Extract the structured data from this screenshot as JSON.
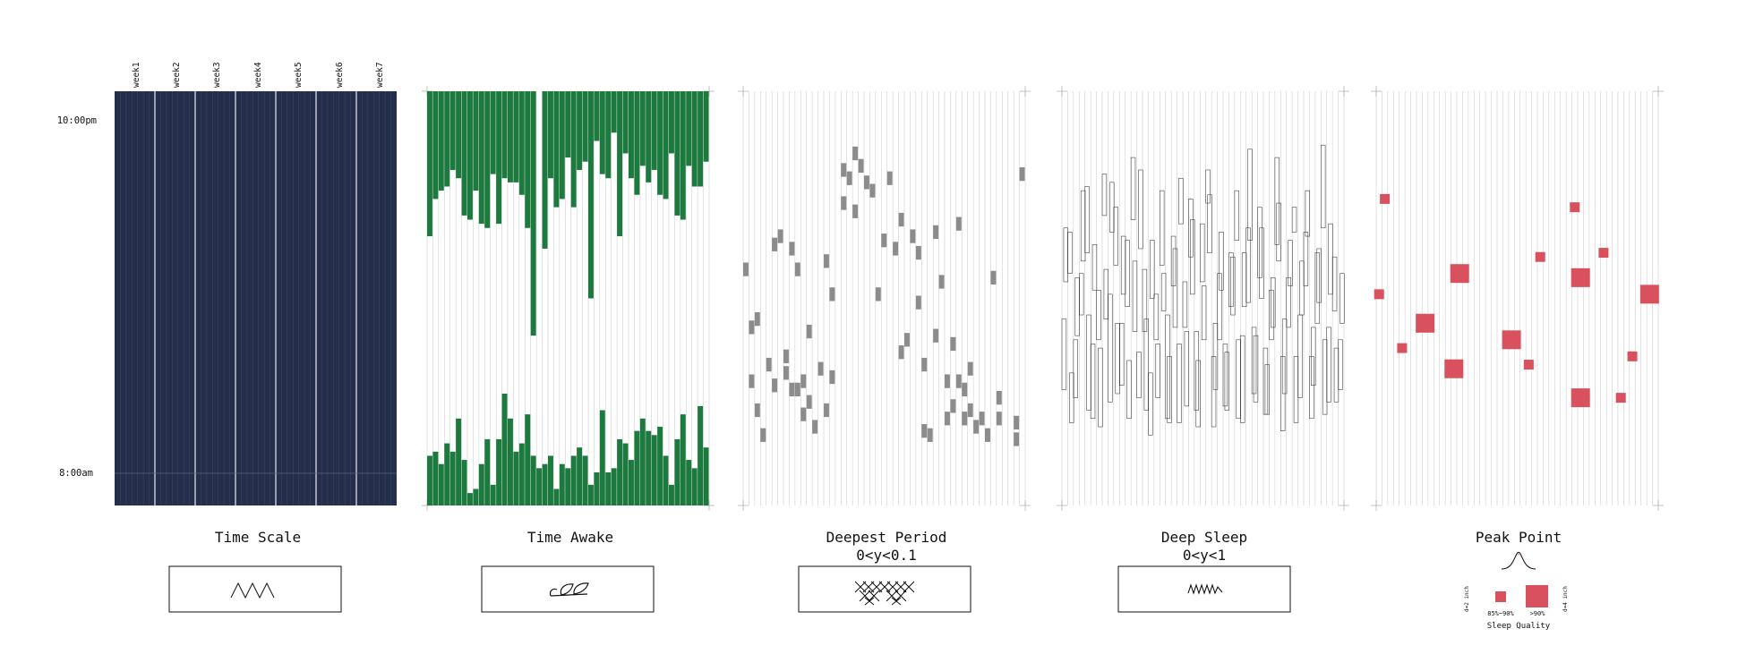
{
  "colors": {
    "navy": "#252e4a",
    "green": "#1d7a3f",
    "gray_block": "#8c8c8c",
    "red": "#d9505e",
    "grid": "#cfcfcf",
    "stroke": "#111111"
  },
  "time_axis": {
    "top_label": "10:00pm",
    "bottom_label": "8:00am"
  },
  "weeks": [
    "week1",
    "week2",
    "week3",
    "week4",
    "week5",
    "week6",
    "week7"
  ],
  "panels": [
    {
      "title": "Time Scale",
      "subtitle": "",
      "icon": "zigzag-icon"
    },
    {
      "title": "Time Awake",
      "subtitle": "",
      "icon": "sprout-icon"
    },
    {
      "title": "Deepest Period",
      "subtitle": "0<y<0.1",
      "icon": "cross-stitch-icon"
    },
    {
      "title": "Deep Sleep",
      "subtitle": "0<y<1",
      "icon": "spring-icon"
    },
    {
      "title": "Peak Point",
      "subtitle": "",
      "icon": "peak-curve-icon"
    }
  ],
  "legend": {
    "small_label": "85%~90%",
    "large_label": ">90%",
    "small_side": "d=2 inch",
    "large_side": "d=4 inch",
    "caption": "Sleep Quality"
  },
  "chart_data": [
    {
      "type": "bar",
      "panel": "Time Scale",
      "days": 49,
      "value_unit": "hours after 10:00pm",
      "ylim": [
        0,
        10
      ],
      "values": [
        10,
        10,
        10,
        10,
        10,
        10,
        10,
        10,
        10,
        10,
        10,
        10,
        10,
        10,
        10,
        10,
        10,
        10,
        10,
        10,
        10,
        10,
        10,
        10,
        10,
        10,
        10,
        10,
        10,
        10,
        10,
        10,
        10,
        10,
        10,
        10,
        10,
        10,
        10,
        10,
        10,
        10,
        10,
        10,
        10,
        10,
        10,
        10,
        10
      ]
    },
    {
      "type": "bar",
      "panel": "Time Awake",
      "days": 49,
      "ylim": [
        0,
        10
      ],
      "evening_awake_hours": [
        3.5,
        2.6,
        2.4,
        2.3,
        1.9,
        2.1,
        3.0,
        3.1,
        2.4,
        3.2,
        3.3,
        2.0,
        3.2,
        2.1,
        2.2,
        2.2,
        2.5,
        3.3,
        5.9,
        0,
        3.8,
        2.1,
        2.8,
        2.6,
        1.6,
        2.8,
        1.9,
        1.7,
        5.0,
        1.2,
        2.0,
        2.1,
        1.0,
        3.5,
        1.5,
        2.1,
        2.5,
        1.8,
        2.2,
        1.9,
        2.5,
        2.6,
        1.5,
        3.0,
        3.1,
        1.8,
        2.3,
        2.3,
        1.7
      ],
      "morning_awake_hours": [
        1.2,
        1.3,
        1.0,
        1.5,
        1.3,
        2.1,
        1.1,
        0.3,
        0.4,
        1.0,
        1.6,
        0.5,
        1.6,
        2.7,
        2.1,
        1.3,
        1.5,
        2.2,
        1.2,
        0.9,
        1.0,
        1.2,
        0.4,
        1.0,
        0.9,
        1.2,
        1.4,
        1.2,
        0.5,
        0.8,
        2.3,
        0.8,
        0.9,
        1.6,
        1.5,
        1.1,
        1.8,
        2.1,
        1.8,
        1.7,
        1.9,
        1.2,
        0.5,
        1.6,
        2.2,
        1.1,
        0.9,
        2.4,
        1.4
      ]
    },
    {
      "type": "scatter",
      "panel": "Deepest Period",
      "subtitle": "0<y<0.1",
      "x_range": [
        1,
        49
      ],
      "ylim": [
        0,
        10
      ],
      "points": [
        [
          1,
          5.7
        ],
        [
          2,
          3.0
        ],
        [
          2,
          4.3
        ],
        [
          3,
          2.3
        ],
        [
          3,
          4.5
        ],
        [
          4,
          1.7
        ],
        [
          5,
          3.4
        ],
        [
          6,
          2.9
        ],
        [
          6,
          6.3
        ],
        [
          7,
          6.5
        ],
        [
          8,
          3.6
        ],
        [
          8,
          3.2
        ],
        [
          9,
          2.8
        ],
        [
          9,
          6.2
        ],
        [
          10,
          2.8
        ],
        [
          10,
          5.7
        ],
        [
          11,
          2.2
        ],
        [
          11,
          3.0
        ],
        [
          12,
          2.5
        ],
        [
          12,
          4.2
        ],
        [
          13,
          1.9
        ],
        [
          14,
          3.3
        ],
        [
          15,
          2.3
        ],
        [
          15,
          5.9
        ],
        [
          16,
          3.1
        ],
        [
          16,
          5.1
        ],
        [
          18,
          7.3
        ],
        [
          18,
          8.1
        ],
        [
          19,
          7.9
        ],
        [
          20,
          7.1
        ],
        [
          20,
          8.5
        ],
        [
          21,
          8.2
        ],
        [
          22,
          7.8
        ],
        [
          23,
          7.6
        ],
        [
          24,
          5.1
        ],
        [
          25,
          6.4
        ],
        [
          26,
          7.9
        ],
        [
          27,
          6.2
        ],
        [
          28,
          3.7
        ],
        [
          28,
          6.9
        ],
        [
          29,
          4.0
        ],
        [
          30,
          6.5
        ],
        [
          31,
          4.9
        ],
        [
          31,
          6.1
        ],
        [
          32,
          1.8
        ],
        [
          32,
          3.4
        ],
        [
          33,
          1.7
        ],
        [
          34,
          4.1
        ],
        [
          34,
          6.6
        ],
        [
          35,
          5.4
        ],
        [
          36,
          2.1
        ],
        [
          36,
          3.0
        ],
        [
          37,
          2.4
        ],
        [
          37,
          3.9
        ],
        [
          38,
          3.0
        ],
        [
          38,
          6.8
        ],
        [
          39,
          2.8
        ],
        [
          39,
          2.1
        ],
        [
          40,
          3.3
        ],
        [
          40,
          2.3
        ],
        [
          41,
          1.9
        ],
        [
          42,
          2.1
        ],
        [
          43,
          1.7
        ],
        [
          44,
          5.5
        ],
        [
          45,
          2.6
        ],
        [
          45,
          2.1
        ],
        [
          48,
          2.0
        ],
        [
          48,
          1.6
        ],
        [
          49,
          8.0
        ]
      ]
    },
    {
      "type": "bar",
      "panel": "Deep Sleep",
      "subtitle": "0<y<1",
      "days": 49,
      "ylim": [
        0,
        10
      ],
      "segments": [
        [
          2.8,
          4.5
        ],
        [
          5.6,
          6.6
        ],
        [
          2.6,
          4.0
        ],
        [
          4.6,
          5.6
        ],
        [
          6.1,
          7.7
        ],
        [
          2.1,
          3.9
        ],
        [
          4.0,
          5.2
        ],
        [
          7.0,
          8.0
        ],
        [
          2.5,
          5.1
        ],
        [
          5.8,
          7.2
        ],
        [
          2.9,
          4.4
        ],
        [
          4.8,
          6.4
        ],
        [
          6.9,
          8.4
        ],
        [
          2.6,
          3.7
        ],
        [
          4.2,
          5.7
        ],
        [
          1.7,
          3.2
        ],
        [
          4.0,
          5.1
        ],
        [
          5.8,
          7.6
        ],
        [
          2.1,
          4.6
        ],
        [
          5.3,
          6.5
        ],
        [
          2.0,
          3.9
        ],
        [
          4.3,
          5.4
        ],
        [
          6.0,
          7.4
        ],
        [
          2.3,
          4.2
        ],
        [
          5.4,
          6.8
        ],
        [
          7.3,
          8.1
        ],
        [
          1.9,
          3.6
        ],
        [
          4.0,
          5.6
        ],
        [
          2.4,
          3.9
        ],
        [
          4.8,
          6.1
        ],
        [
          6.4,
          7.6
        ],
        [
          2.0,
          4.1
        ],
        [
          4.9,
          6.7
        ],
        [
          2.7,
          4.3
        ],
        [
          5.5,
          7.2
        ],
        [
          2.2,
          3.8
        ],
        [
          4.0,
          5.2
        ],
        [
          6.3,
          8.4
        ],
        [
          1.8,
          3.6
        ],
        [
          4.3,
          5.5
        ],
        [
          6.6,
          7.2
        ],
        [
          2.6,
          4.6
        ],
        [
          5.3,
          6.6
        ],
        [
          2.1,
          3.6
        ],
        [
          4.4,
          6.1
        ],
        [
          6.7,
          8.7
        ],
        [
          2.5,
          4.3
        ],
        [
          4.7,
          6.0
        ],
        [
          2.8,
          4.0
        ],
        [
          5.4,
          6.7
        ],
        [
          2.0,
          3.2
        ],
        [
          4.1,
          5.5
        ],
        [
          5.9,
          7.6
        ],
        [
          2.3,
          4.6
        ],
        [
          5.2,
          6.3
        ],
        [
          1.9,
          3.8
        ],
        [
          4.5,
          5.7
        ],
        [
          6.6,
          7.8
        ],
        [
          2.7,
          4.4
        ],
        [
          5.1,
          6.5
        ],
        [
          2.1,
          3.5
        ],
        [
          4.2,
          5.9
        ],
        [
          6.2,
          8.1
        ],
        [
          2.3,
          4.5
        ],
        [
          5.0,
          6.4
        ],
        [
          2.6,
          3.9
        ],
        [
          4.7,
          5.6
        ],
        [
          2.0,
          3.6
        ],
        [
          4.3,
          6.2
        ],
        [
          6.8,
          7.9
        ],
        [
          2.4,
          4.2
        ],
        [
          5.1,
          6.9
        ],
        [
          1.9,
          3.5
        ],
        [
          4.0,
          5.3
        ],
        [
          6.1,
          7.5
        ],
        [
          2.8,
          4.4
        ],
        [
          5.2,
          6.6
        ],
        [
          2.3,
          3.7
        ],
        [
          4.6,
          6.0
        ],
        [
          2.1,
          4.0
        ],
        [
          4.8,
          6.1
        ],
        [
          6.4,
          8.6
        ],
        [
          2.5,
          4.1
        ],
        [
          5.0,
          6.7
        ],
        [
          2.2,
          3.4
        ],
        [
          4.3,
          5.5
        ],
        [
          5.9,
          7.3
        ],
        [
          2.7,
          4.5
        ],
        [
          5.3,
          6.4
        ],
        [
          2.0,
          3.6
        ],
        [
          4.6,
          5.9
        ],
        [
          6.5,
          7.6
        ],
        [
          2.9,
          4.3
        ],
        [
          4.9,
          6.2
        ],
        [
          2.2,
          4.0
        ],
        [
          5.1,
          6.8
        ],
        [
          2.5,
          3.8
        ],
        [
          4.4,
          5.6
        ]
      ]
    },
    {
      "type": "scatter",
      "panel": "Peak Point",
      "x_range": [
        1,
        49
      ],
      "ylim": [
        0,
        10
      ],
      "size_legend": {
        ">90%": "large",
        "85%~90%": "small"
      },
      "points": [
        {
          "day": 1,
          "y": 5.1,
          "quality": "85%~90%"
        },
        {
          "day": 2,
          "y": 7.4,
          "quality": "85%~90%"
        },
        {
          "day": 5,
          "y": 3.8,
          "quality": "85%~90%"
        },
        {
          "day": 9,
          "y": 4.4,
          "quality": ">90%"
        },
        {
          "day": 14,
          "y": 3.3,
          "quality": ">90%"
        },
        {
          "day": 15,
          "y": 5.6,
          "quality": ">90%"
        },
        {
          "day": 24,
          "y": 4.0,
          "quality": ">90%"
        },
        {
          "day": 27,
          "y": 3.4,
          "quality": "85%~90%"
        },
        {
          "day": 29,
          "y": 6.0,
          "quality": "85%~90%"
        },
        {
          "day": 35,
          "y": 7.2,
          "quality": "85%~90%"
        },
        {
          "day": 36,
          "y": 5.5,
          "quality": ">90%"
        },
        {
          "day": 36,
          "y": 2.6,
          "quality": ">90%"
        },
        {
          "day": 40,
          "y": 6.1,
          "quality": "85%~90%"
        },
        {
          "day": 43,
          "y": 2.6,
          "quality": "85%~90%"
        },
        {
          "day": 45,
          "y": 3.6,
          "quality": "85%~90%"
        },
        {
          "day": 48,
          "y": 5.1,
          "quality": ">90%"
        }
      ]
    }
  ]
}
